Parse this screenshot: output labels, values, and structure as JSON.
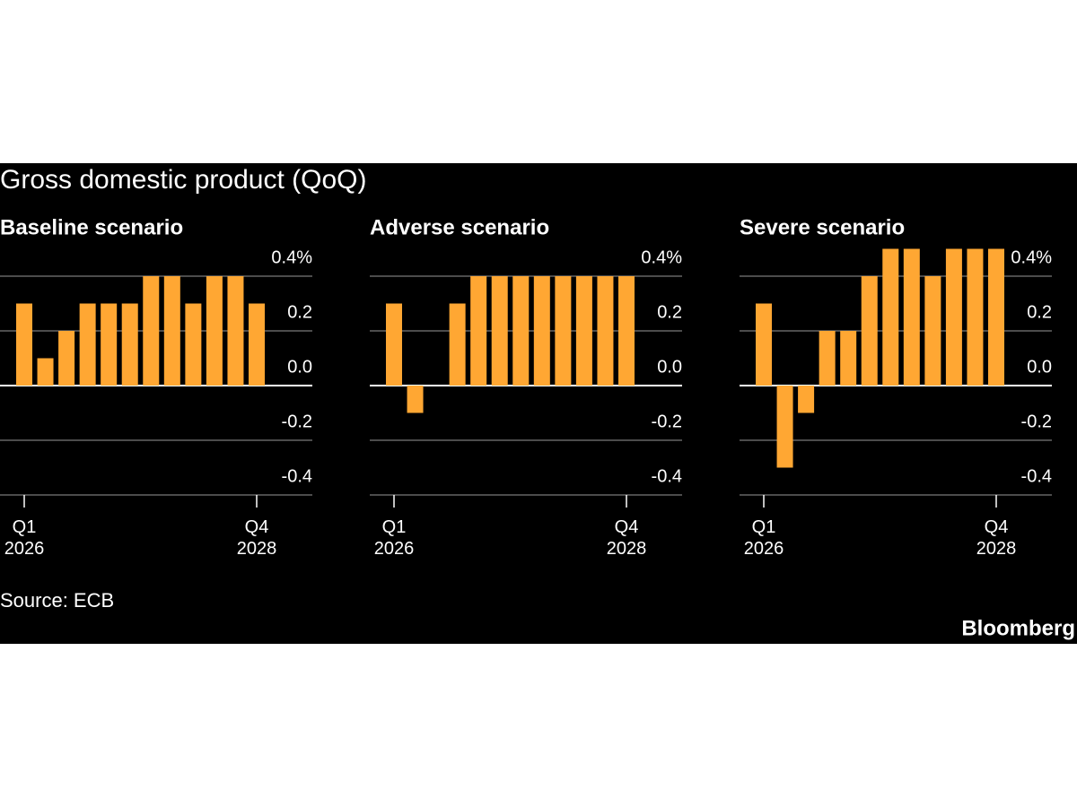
{
  "title": "Gross domestic product (QoQ)",
  "source": "Source: ECB",
  "brand": "Bloomberg",
  "chart_data": [
    {
      "type": "bar",
      "title": "Baseline scenario",
      "color": "#ffa733",
      "categories": [
        "Q1 2026",
        null,
        null,
        null,
        null,
        null,
        null,
        null,
        null,
        null,
        null,
        "Q4 2028"
      ],
      "values": [
        0.3,
        0.1,
        0.2,
        0.3,
        0.3,
        0.3,
        0.4,
        0.4,
        0.3,
        0.4,
        0.4,
        0.3
      ],
      "ylim": [
        -0.4,
        0.5
      ],
      "yticks": [
        {
          "value": 0.4,
          "label": "0.4%"
        },
        0.2,
        {
          "value": 0,
          "label": "0.0"
        },
        -0.2,
        -0.4
      ],
      "grid": true
    },
    {
      "type": "bar",
      "title": "Adverse scenario",
      "color": "#ffa733",
      "categories": [
        "Q1 2026",
        null,
        null,
        null,
        null,
        null,
        null,
        null,
        null,
        null,
        null,
        "Q4 2028"
      ],
      "values": [
        0.3,
        -0.1,
        0,
        0.3,
        0.4,
        0.4,
        0.4,
        0.4,
        0.4,
        0.4,
        0.4,
        0.4
      ],
      "ylim": [
        -0.4,
        0.5
      ],
      "yticks": [
        {
          "value": 0.4,
          "label": "0.4%"
        },
        0.2,
        {
          "value": 0,
          "label": "0.0"
        },
        -0.2,
        -0.4
      ],
      "grid": true
    },
    {
      "type": "bar",
      "title": "Severe scenario",
      "color": "#ffa733",
      "categories": [
        "Q1 2026",
        null,
        null,
        null,
        null,
        null,
        null,
        null,
        null,
        null,
        null,
        "Q4 2028"
      ],
      "values": [
        0.3,
        -0.3,
        -0.1,
        0.2,
        0.2,
        0.4,
        0.5,
        0.5,
        0.4,
        0.5,
        0.5,
        0.5
      ],
      "ylim": [
        -0.4,
        0.5
      ],
      "yticks": [
        {
          "value": 0.4,
          "label": "0.4%"
        },
        0.2,
        {
          "value": 0,
          "label": "0.0"
        },
        -0.2,
        -0.4
      ],
      "grid": true
    }
  ]
}
